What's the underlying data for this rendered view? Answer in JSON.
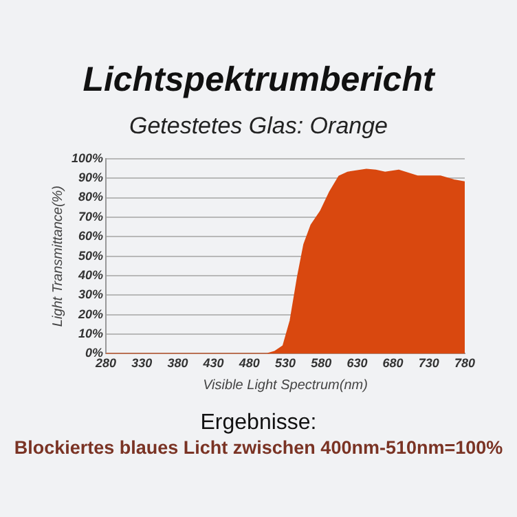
{
  "chart_data": {
    "type": "area",
    "title": "Lichtspektrumbericht",
    "subtitle": "Getestetes Glas: Orange",
    "xlabel": "Visible Light Spectrum(nm)",
    "ylabel": "Light Transmittance(%)",
    "annotations": [
      "Ergebnisse:",
      "Blockiertes blaues Licht zwischen 400nm-510nm=100%"
    ],
    "x": [
      280,
      330,
      380,
      430,
      480,
      505,
      515,
      527,
      537,
      547,
      556,
      566,
      579,
      592,
      605,
      617,
      643,
      656,
      669,
      688,
      714,
      746,
      765,
      780
    ],
    "series": [
      {
        "color": "#d9480f",
        "values": [
          0,
          0,
          0,
          0,
          0,
          0,
          1,
          4,
          17,
          39,
          56,
          66,
          73,
          83,
          91,
          93,
          94.5,
          94,
          93,
          94,
          91,
          91,
          89,
          88
        ]
      }
    ],
    "xlim": [
      280,
      780
    ],
    "xticks": [
      280,
      330,
      380,
      430,
      480,
      530,
      580,
      630,
      680,
      730,
      780
    ],
    "ylim": [
      0,
      100
    ],
    "yticks": [
      {
        "value": 0,
        "label": "0%"
      },
      {
        "value": 10,
        "label": "10%"
      },
      {
        "value": 20,
        "label": "20%"
      },
      {
        "value": 30,
        "label": "30%"
      },
      {
        "value": 40,
        "label": "40%"
      },
      {
        "value": 50,
        "label": "50%"
      },
      {
        "value": 60,
        "label": "60%"
      },
      {
        "value": 70,
        "label": "70%"
      },
      {
        "value": 80,
        "label": "80%"
      },
      {
        "value": 90,
        "label": "90%"
      },
      {
        "value": 100,
        "label": "100%"
      }
    ],
    "grid": "y",
    "legend": false,
    "marker": "none",
    "line_style": "solid"
  }
}
